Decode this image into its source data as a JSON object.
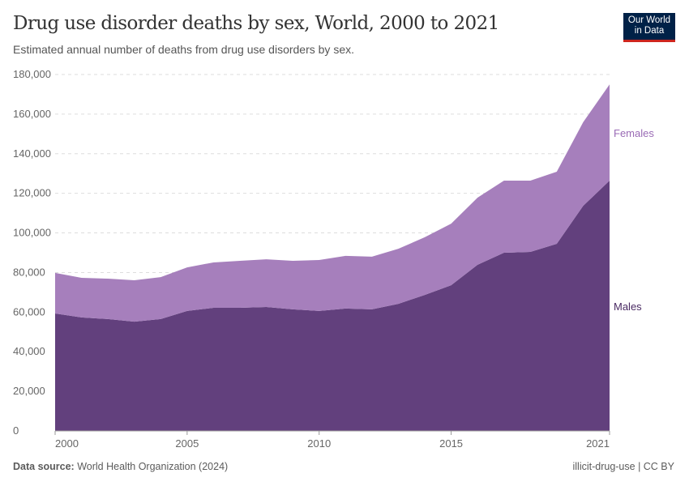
{
  "header": {
    "title": "Drug use disorder deaths by sex, World, 2000 to 2021",
    "subtitle": "Estimated annual number of deaths from drug use disorders by sex.",
    "logo_line1": "Our World",
    "logo_line2": "in Data"
  },
  "footer": {
    "source_label": "Data source:",
    "source": "World Health Organization (2024)",
    "right": "illicit-drug-use | CC BY"
  },
  "chart_data": {
    "type": "area",
    "stacked": true,
    "title": "Drug use disorder deaths by sex, World, 2000 to 2021",
    "subtitle": "Estimated annual number of deaths from drug use disorders by sex.",
    "x": [
      2000,
      2001,
      2002,
      2003,
      2004,
      2005,
      2006,
      2007,
      2008,
      2009,
      2010,
      2011,
      2012,
      2013,
      2014,
      2015,
      2016,
      2017,
      2018,
      2019,
      2020,
      2021
    ],
    "xlim": [
      2000,
      2021
    ],
    "xticks": [
      "2000",
      "2005",
      "2010",
      "2015",
      "2021"
    ],
    "xtick_values": [
      2000,
      2005,
      2010,
      2015,
      2021
    ],
    "ylim": [
      0,
      180000
    ],
    "yticks": [
      "0",
      "20,000",
      "40,000",
      "60,000",
      "80,000",
      "100,000",
      "120,000",
      "140,000",
      "160,000",
      "180,000"
    ],
    "ytick_values": [
      0,
      20000,
      40000,
      60000,
      80000,
      100000,
      120000,
      140000,
      160000,
      180000
    ],
    "grid": "horizontal dashed",
    "legend": "right (inline labels)",
    "series": [
      {
        "name": "Males",
        "color": "#62407d",
        "values": [
          59300,
          57300,
          56500,
          55200,
          56500,
          60600,
          62200,
          62200,
          62600,
          61400,
          60600,
          61800,
          61400,
          64200,
          68700,
          73600,
          83900,
          90000,
          90400,
          94500,
          113700,
          126400
        ]
      },
      {
        "name": "Females",
        "color": "#a67fbc",
        "values": [
          20500,
          20000,
          20400,
          20900,
          21200,
          22000,
          22900,
          23700,
          24100,
          24500,
          25700,
          26600,
          26600,
          27800,
          29100,
          31100,
          33900,
          36400,
          36000,
          36400,
          42200,
          48600
        ]
      }
    ]
  }
}
